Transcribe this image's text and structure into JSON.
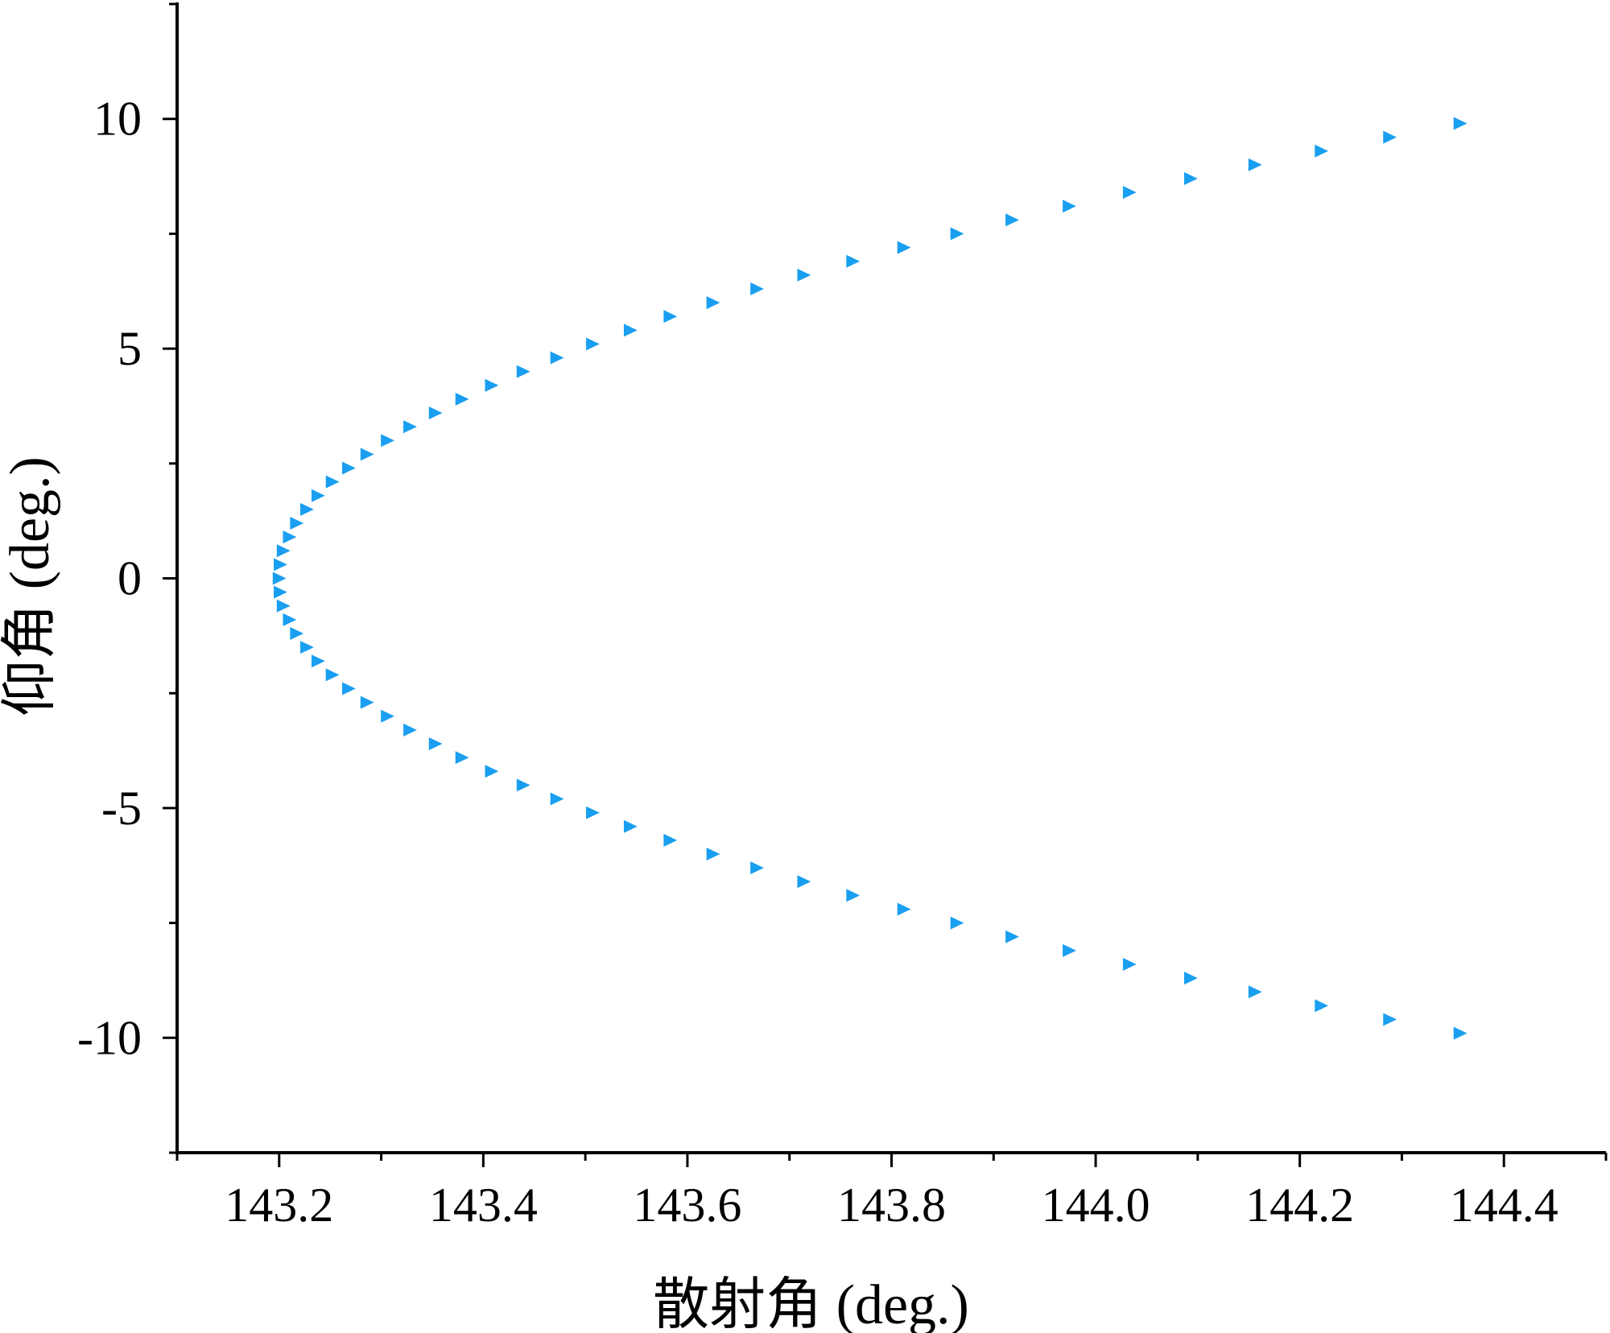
{
  "chart_data": {
    "type": "scatter",
    "title": "",
    "xlabel": "散射角 (deg.)",
    "ylabel": "仰角 (deg.)",
    "xlim": [
      143.1,
      144.5
    ],
    "ylim": [
      -12.5,
      12.5
    ],
    "xticks": [
      143.2,
      143.4,
      143.6,
      143.8,
      144.0,
      144.2,
      144.4
    ],
    "xtick_labels": [
      "143.2",
      "143.4",
      "143.6",
      "143.8",
      "144.0",
      "144.2",
      "144.4"
    ],
    "yticks": [
      -10,
      -5,
      0,
      5,
      10
    ],
    "ytick_labels": [
      "-10",
      "-5",
      "0",
      "5",
      "10"
    ],
    "grid": false,
    "marker": "triangle-right",
    "color": "#1a9ff0",
    "x_at_zero_elevation": 143.2,
    "series": [
      {
        "curve": "x = 143.2 + 0.0118 * y^2",
        "y": [
          -9.9,
          -9.6,
          -9.3,
          -9.0,
          -8.7,
          -8.4,
          -8.1,
          -7.8,
          -7.5,
          -7.2,
          -6.9,
          -6.6,
          -6.3,
          -6.0,
          -5.7,
          -5.4,
          -5.1,
          -4.8,
          -4.5,
          -4.2,
          -3.9,
          -3.6,
          -3.3,
          -3.0,
          -2.7,
          -2.4,
          -2.1,
          -1.8,
          -1.5,
          -1.2,
          -0.9,
          -0.6,
          -0.3,
          0.0,
          0.3,
          0.6,
          0.9,
          1.2,
          1.5,
          1.8,
          2.1,
          2.4,
          2.7,
          3.0,
          3.3,
          3.6,
          3.9,
          4.2,
          4.5,
          4.8,
          5.1,
          5.4,
          5.7,
          6.0,
          6.3,
          6.6,
          6.9,
          7.2,
          7.5,
          7.8,
          8.1,
          8.4,
          8.7,
          9.0,
          9.3,
          9.6,
          9.9
        ],
        "x": [
          144.357,
          144.288,
          144.221,
          144.156,
          144.093,
          144.033,
          143.974,
          143.918,
          143.864,
          143.812,
          143.762,
          143.714,
          143.668,
          143.625,
          143.583,
          143.544,
          143.507,
          143.472,
          143.439,
          143.408,
          143.379,
          143.353,
          143.328,
          143.306,
          143.286,
          143.268,
          143.252,
          143.238,
          143.227,
          143.217,
          143.21,
          143.204,
          143.201,
          143.2,
          143.201,
          143.204,
          143.21,
          143.217,
          143.227,
          143.238,
          143.252,
          143.268,
          143.286,
          143.306,
          143.328,
          143.353,
          143.379,
          143.408,
          143.439,
          143.472,
          143.507,
          143.544,
          143.583,
          143.625,
          143.668,
          143.714,
          143.762,
          143.812,
          143.864,
          143.918,
          143.974,
          144.033,
          144.093,
          144.156,
          144.221,
          144.288,
          144.357
        ]
      }
    ]
  }
}
